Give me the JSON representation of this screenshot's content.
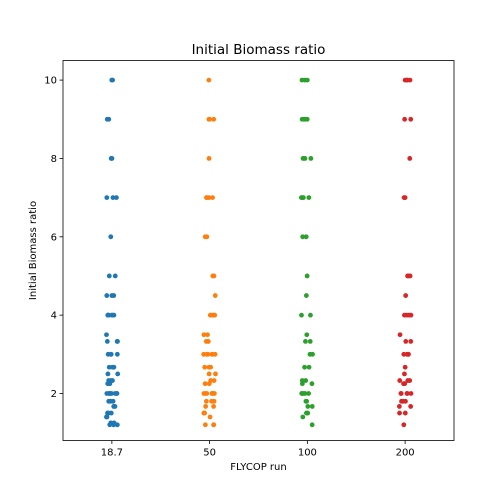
{
  "chart_data": {
    "type": "scatter",
    "title": "Initial Biomass ratio",
    "xlabel": "FLYCOP run",
    "ylabel": "Initial Biomass ratio",
    "categories": [
      "18.7",
      "50",
      "100",
      "200"
    ],
    "ylim": [
      0.8,
      10.5
    ],
    "yticks": [
      2,
      4,
      6,
      8,
      10
    ],
    "grid": false,
    "series": [
      {
        "category": "18.7",
        "color": "#1f77b4",
        "values": [
          10,
          10,
          9,
          9,
          8,
          8,
          7,
          7,
          7,
          6,
          5,
          5,
          4.5,
          4.5,
          4.5,
          4,
          4,
          4,
          4,
          4,
          4,
          3.5,
          3.33,
          3.33,
          3.33,
          3,
          3,
          3,
          3,
          2.67,
          2.67,
          2.67,
          2.5,
          2.5,
          2.33,
          2.33,
          2.33,
          2.25,
          2.25,
          2,
          2,
          2,
          2,
          2,
          2,
          2,
          2,
          1.8,
          1.8,
          1.8,
          1.67,
          1.67,
          1.5,
          1.5,
          1.5,
          1.4,
          1.4,
          1.25,
          1.25,
          1.2,
          1.2,
          1.2
        ]
      },
      {
        "category": "50",
        "color": "#ff7f0e",
        "values": [
          10,
          9,
          9,
          9,
          8,
          7,
          7,
          7,
          7,
          6,
          6,
          5,
          5,
          4.5,
          4,
          4,
          4,
          4,
          4,
          3.5,
          3.5,
          3.33,
          3.33,
          3.33,
          3,
          3,
          3,
          3,
          3,
          3,
          2.67,
          2.67,
          2.67,
          2.5,
          2.5,
          2.33,
          2.33,
          2.25,
          2.25,
          2,
          2,
          2,
          2,
          2,
          2,
          2,
          1.8,
          1.8,
          1.8,
          1.67,
          1.67,
          1.5,
          1.5,
          1.5,
          1.4,
          1.2,
          1.2,
          1.2
        ]
      },
      {
        "category": "100",
        "color": "#2ca02c",
        "values": [
          10,
          10,
          10,
          9,
          9,
          9,
          9,
          8,
          8,
          8,
          7,
          7,
          7,
          7,
          6,
          6,
          5,
          4.5,
          4,
          4,
          3.5,
          3.33,
          3.33,
          3,
          3,
          2.67,
          2.67,
          2.33,
          2.33,
          2.25,
          2.25,
          2,
          2,
          2,
          2,
          2,
          1.8,
          1.8,
          1.67,
          1.67,
          1.5,
          1.5,
          1.4,
          1.2
        ]
      },
      {
        "category": "200",
        "color": "#d62728",
        "values": [
          10,
          10,
          10,
          10,
          9,
          9,
          8,
          7,
          7,
          5,
          5,
          5,
          4.5,
          4,
          4,
          4,
          4,
          3.5,
          3.33,
          3.33,
          3,
          3,
          3,
          3,
          2.67,
          2.5,
          2.33,
          2.33,
          2.33,
          2.25,
          2.25,
          2,
          2,
          2,
          2,
          2,
          1.8,
          1.8,
          1.8,
          1.67,
          1.67,
          1.5,
          1.5,
          1.2
        ]
      }
    ]
  }
}
